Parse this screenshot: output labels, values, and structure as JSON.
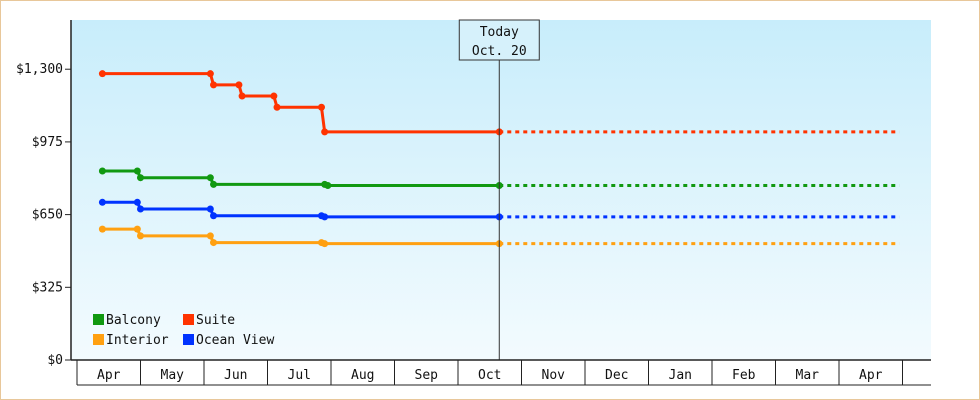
{
  "chart_data": {
    "type": "line",
    "step": true,
    "y_ticks": [
      "$0",
      "$325",
      "$650",
      "$975",
      "$1,300"
    ],
    "y_tick_values": [
      0,
      325,
      650,
      975,
      1300
    ],
    "ylim": [
      0,
      1520
    ],
    "x_categories": [
      "Apr",
      "May",
      "Jun",
      "Jul",
      "Aug",
      "Sep",
      "Oct",
      "Nov",
      "Dec",
      "Jan",
      "Feb",
      "Mar",
      "Apr"
    ],
    "today": {
      "label": "Today",
      "date": "Oct. 20",
      "x": 6.15
    },
    "series": [
      {
        "name": "Suite",
        "color": "#ff3300",
        "points": [
          [
            -0.1,
            1280
          ],
          [
            1.6,
            1280
          ],
          [
            1.65,
            1230
          ],
          [
            2.05,
            1230
          ],
          [
            2.1,
            1180
          ],
          [
            2.6,
            1180
          ],
          [
            2.65,
            1130
          ],
          [
            3.35,
            1130
          ],
          [
            3.4,
            1020
          ],
          [
            6.15,
            1020
          ]
        ]
      },
      {
        "name": "Balcony",
        "color": "#119911",
        "points": [
          [
            -0.1,
            845
          ],
          [
            0.45,
            845
          ],
          [
            0.5,
            815
          ],
          [
            1.6,
            815
          ],
          [
            1.65,
            785
          ],
          [
            3.4,
            785
          ],
          [
            3.45,
            780
          ],
          [
            6.15,
            780
          ]
        ]
      },
      {
        "name": "Ocean View",
        "color": "#0033ff",
        "points": [
          [
            -0.1,
            705
          ],
          [
            0.45,
            705
          ],
          [
            0.5,
            675
          ],
          [
            1.6,
            675
          ],
          [
            1.65,
            645
          ],
          [
            3.35,
            645
          ],
          [
            3.4,
            640
          ],
          [
            6.15,
            640
          ]
        ]
      },
      {
        "name": "Interior",
        "color": "#ffa011",
        "points": [
          [
            -0.1,
            585
          ],
          [
            0.45,
            585
          ],
          [
            0.5,
            555
          ],
          [
            1.6,
            555
          ],
          [
            1.65,
            525
          ],
          [
            3.35,
            525
          ],
          [
            3.4,
            520
          ],
          [
            6.15,
            520
          ]
        ]
      }
    ],
    "projection_end_x": 12.45,
    "legend": [
      {
        "name": "Balcony",
        "color": "#119911"
      },
      {
        "name": "Suite",
        "color": "#ff3300"
      },
      {
        "name": "Interior",
        "color": "#ffa011"
      },
      {
        "name": "Ocean View",
        "color": "#0033ff"
      }
    ],
    "legend_position": "bottom-left",
    "grid": false
  }
}
